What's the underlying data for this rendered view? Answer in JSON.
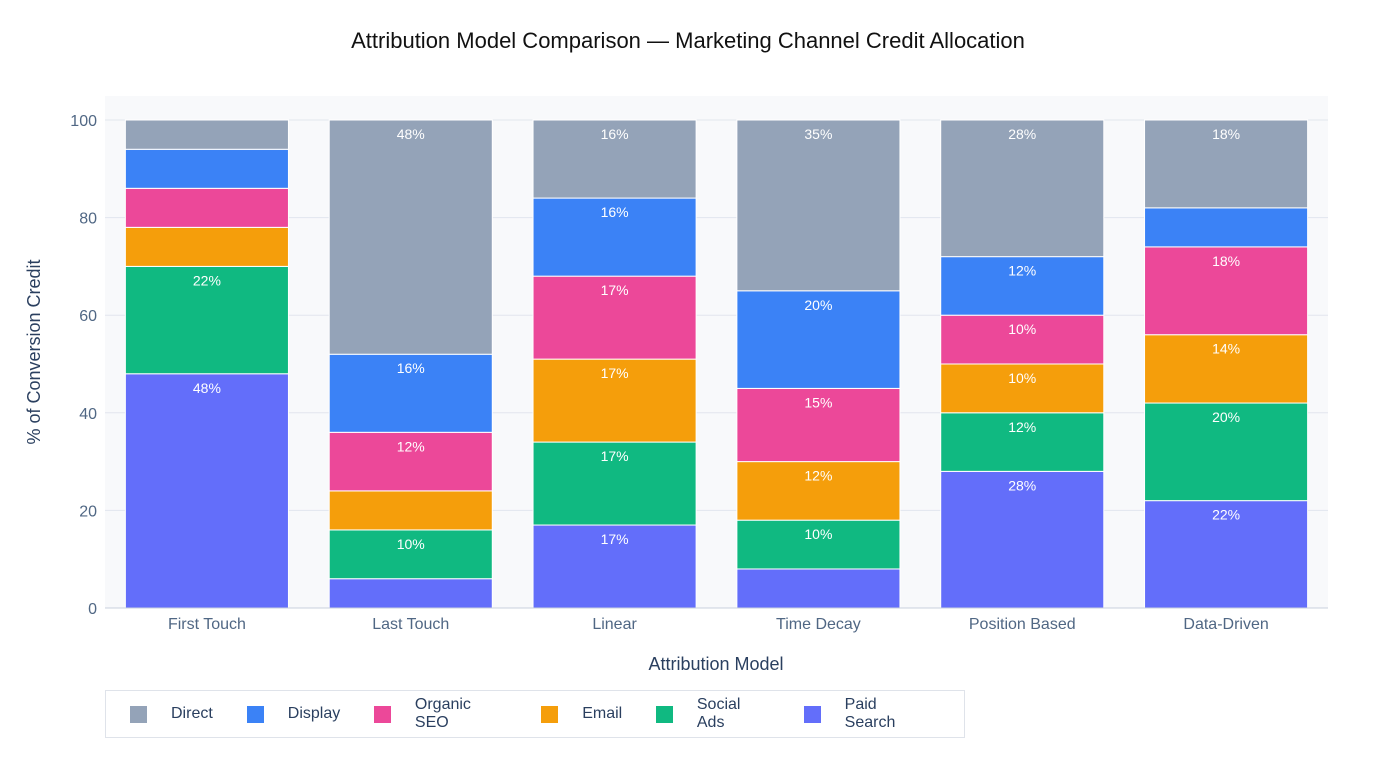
{
  "chart_data": {
    "type": "bar",
    "stacked": true,
    "title": "Attribution Model Comparison — Marketing Channel Credit Allocation",
    "xlabel": "Attribution Model",
    "ylabel": "% of Conversion Credit",
    "ylim": [
      0,
      100
    ],
    "yticks": [
      "0",
      "20",
      "40",
      "60",
      "80",
      "100"
    ],
    "categories": [
      "First Touch",
      "Last Touch",
      "Linear",
      "Time Decay",
      "Position Based",
      "Data-Driven"
    ],
    "series": [
      {
        "name": "Paid Search",
        "color": "#636efa",
        "values": [
          48,
          6,
          17,
          8,
          28,
          22
        ]
      },
      {
        "name": "Social Ads",
        "color": "#10b981",
        "values": [
          22,
          10,
          17,
          10,
          12,
          20
        ]
      },
      {
        "name": "Email",
        "color": "#f59e0b",
        "values": [
          8,
          8,
          17,
          12,
          10,
          14
        ]
      },
      {
        "name": "Organic SEO",
        "color": "#ec4899",
        "values": [
          8,
          12,
          17,
          15,
          10,
          18
        ]
      },
      {
        "name": "Display",
        "color": "#3b82f6",
        "values": [
          8,
          16,
          16,
          20,
          12,
          8
        ]
      },
      {
        "name": "Direct",
        "color": "#94a3b8",
        "values": [
          6,
          48,
          16,
          35,
          28,
          18
        ]
      }
    ],
    "label_threshold": 10,
    "legend": {
      "placement": "bottom-left",
      "order": [
        "Direct",
        "Display",
        "Organic SEO",
        "Email",
        "Social Ads",
        "Paid Search"
      ]
    },
    "grid": true
  }
}
